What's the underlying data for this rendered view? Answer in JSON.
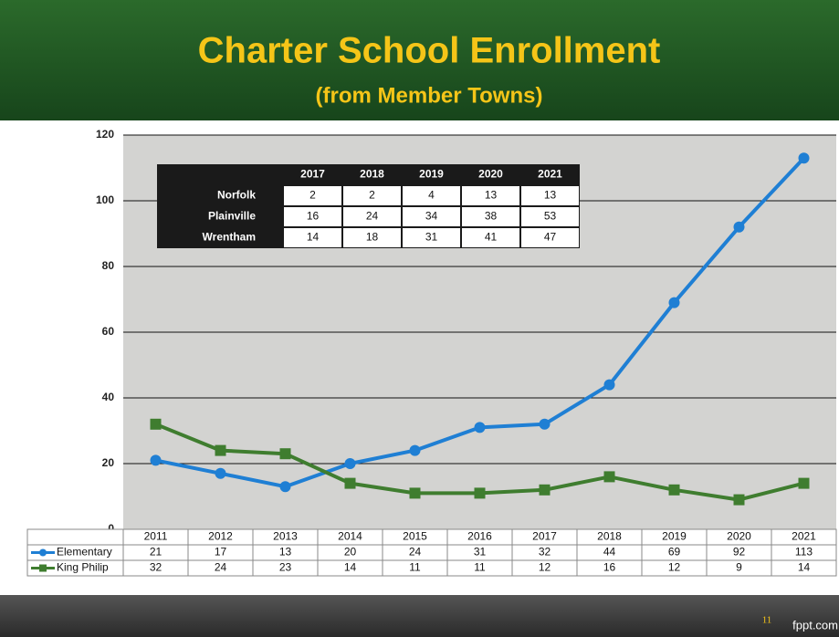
{
  "chart_data": {
    "type": "line",
    "title": "Charter School Enrollment",
    "subtitle": "(from Member Towns)",
    "categories": [
      "2011",
      "2012",
      "2013",
      "2014",
      "2015",
      "2016",
      "2017",
      "2018",
      "2019",
      "2020",
      "2021"
    ],
    "series": [
      {
        "name": "Elementary",
        "color": "#1f7fd4",
        "marker": "circle",
        "values": [
          21,
          17,
          13,
          20,
          24,
          31,
          32,
          44,
          69,
          92,
          113
        ]
      },
      {
        "name": "King Philip",
        "color": "#3f7d2f",
        "marker": "square",
        "values": [
          32,
          24,
          23,
          14,
          11,
          11,
          12,
          16,
          12,
          9,
          14
        ]
      }
    ],
    "ylim": [
      0,
      120
    ],
    "yticks": [
      0,
      20,
      40,
      60,
      80,
      100,
      120
    ],
    "grid": true,
    "inset_table": {
      "columns": [
        "2017",
        "2018",
        "2019",
        "2020",
        "2021"
      ],
      "rows": [
        {
          "name": "Norfolk",
          "values": [
            2,
            2,
            4,
            13,
            13
          ]
        },
        {
          "name": "Plainville",
          "values": [
            16,
            24,
            34,
            38,
            53
          ]
        },
        {
          "name": "Wrentham",
          "values": [
            14,
            18,
            31,
            41,
            47
          ]
        }
      ]
    }
  },
  "footer": {
    "page": "11",
    "site": "fppt.com"
  }
}
